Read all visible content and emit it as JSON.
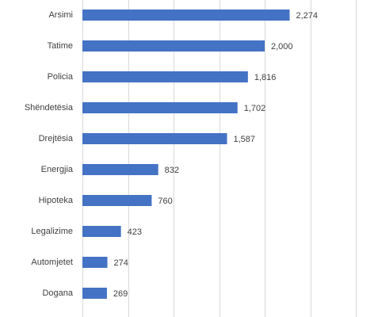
{
  "chart_data": {
    "type": "hbar",
    "categories": [
      "Arsimi",
      "Tatime",
      "Policia",
      "Shëndetësia",
      "Drejtësia",
      "Energjia",
      "Hipoteka",
      "Legalizime",
      "Automjetet",
      "Dogana"
    ],
    "values": [
      2274,
      2000,
      1816,
      1702,
      1587,
      832,
      760,
      423,
      274,
      269
    ],
    "value_labels": [
      "2,274",
      "2,000",
      "1,816",
      "1,702",
      "1,587",
      "832",
      "760",
      "423",
      "274",
      "269"
    ],
    "color": "#4472c4",
    "xlim": [
      0,
      3000
    ],
    "xticks": [
      0,
      500,
      1000,
      1500,
      2000,
      2500,
      3000
    ],
    "grid": true
  }
}
